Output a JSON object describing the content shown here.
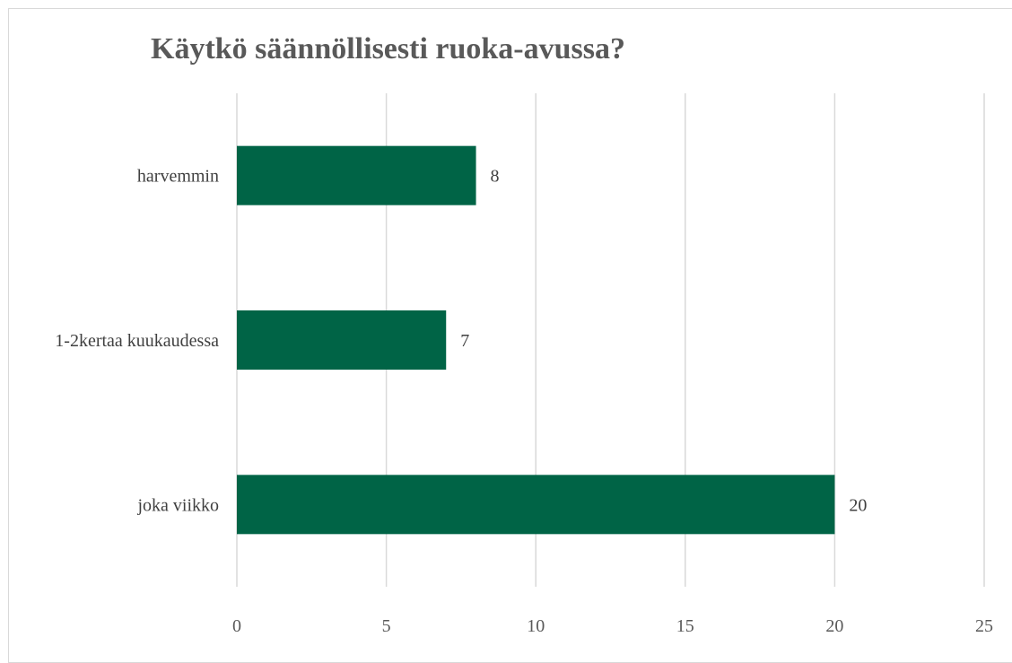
{
  "chart_data": {
    "type": "bar",
    "orientation": "horizontal",
    "title": "Käytkö säännöllisesti ruoka-avussa?",
    "categories": [
      "harvemmin",
      "1-2kertaa kuukaudessa",
      "joka viikko"
    ],
    "values": [
      8,
      7,
      20
    ],
    "data_labels": [
      "8",
      "7",
      "20"
    ],
    "xlim": [
      0,
      25
    ],
    "x_ticks": [
      0,
      5,
      10,
      15,
      20,
      25
    ],
    "x_tick_labels": [
      "0",
      "5",
      "10",
      "15",
      "20",
      "25"
    ],
    "xlabel": "",
    "ylabel": "",
    "grid": "vertical",
    "legend": "none",
    "colors": {
      "bar": "#006446",
      "grid": "#d9d9d9",
      "title": "#595959",
      "text": "#404040"
    }
  }
}
